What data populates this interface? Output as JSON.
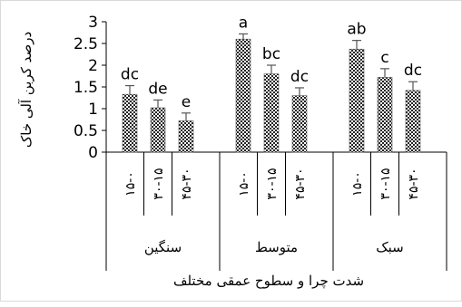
{
  "chart_data": {
    "type": "bar",
    "ylabel": "درصد کربن آلی خاک",
    "xlabel": "شدت چرا و سطوح عمقی مختلف",
    "ylim": [
      0,
      3
    ],
    "yticks": [
      "0",
      "0.5",
      "1",
      "1.5",
      "2",
      "2.5",
      "3"
    ],
    "groups": [
      {
        "label": "سنگین",
        "bars": [
          {
            "category": "۱۵-۰",
            "value": 1.33,
            "error": 0.2,
            "letter": "dc"
          },
          {
            "category": "۳۰-۱۵",
            "value": 1.02,
            "error": 0.18,
            "letter": "de"
          },
          {
            "category": "۴۵-۳۰",
            "value": 0.72,
            "error": 0.18,
            "letter": "e"
          }
        ]
      },
      {
        "label": "متوسط",
        "bars": [
          {
            "category": "۱۵-۰",
            "value": 2.6,
            "error": 0.12,
            "letter": "a"
          },
          {
            "category": "۳۰-۱۵",
            "value": 1.8,
            "error": 0.2,
            "letter": "bc"
          },
          {
            "category": "۴۵-۳۰",
            "value": 1.3,
            "error": 0.18,
            "letter": "dc"
          }
        ]
      },
      {
        "label": "سبک",
        "bars": [
          {
            "category": "۱۵-۰",
            "value": 2.37,
            "error": 0.2,
            "letter": "ab"
          },
          {
            "category": "۳۰-۱۵",
            "value": 1.72,
            "error": 0.2,
            "letter": "c"
          },
          {
            "category": "۴۵-۳۰",
            "value": 1.42,
            "error": 0.2,
            "letter": "dc"
          }
        ]
      }
    ],
    "grid": false,
    "bar_color": "#555555"
  }
}
